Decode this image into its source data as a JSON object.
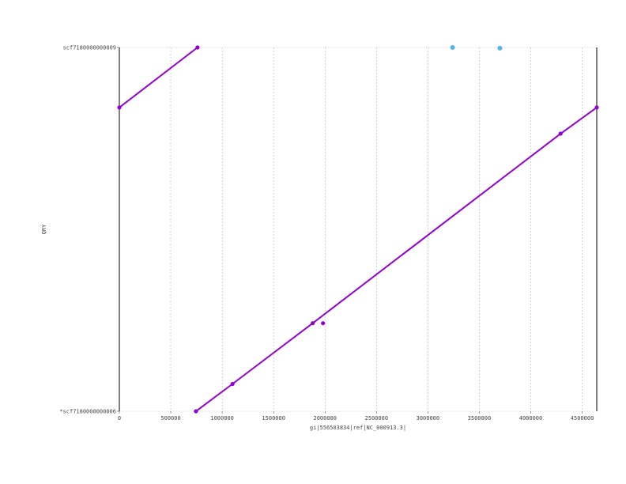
{
  "chart_data": {
    "type": "line",
    "title": "",
    "xlabel": "gi|556503834|ref|NC_000913.3|",
    "ylabel": "QRY",
    "xlim": [
      0,
      4641652
    ],
    "ylim": [
      0,
      1
    ],
    "x_ticks": [
      "0",
      "500000",
      "1000000",
      "1500000",
      "2000000",
      "2500000",
      "3000000",
      "3500000",
      "4000000",
      "4500000"
    ],
    "x_tick_values": [
      0,
      500000,
      1000000,
      1500000,
      2000000,
      2500000,
      3000000,
      3500000,
      4000000,
      4500000
    ],
    "y_ticks": [
      {
        "label": "scf7180000000009",
        "value": 1
      },
      {
        "label": "*scf7180000000006",
        "value": 0
      }
    ],
    "grid": true,
    "series": [
      {
        "color": "#9400d3",
        "segments": [
          {
            "points": [
              [
                0,
                0.835
              ],
              [
                760000,
                1.0
              ]
            ]
          },
          {
            "points": [
              [
                745000,
                0.0
              ],
              [
                1100000,
                0.075
              ],
              [
                1880000,
                0.242
              ],
              [
                4290000,
                0.763
              ],
              [
                4641652,
                0.835
              ]
            ]
          },
          {
            "points": [
              [
                1980000,
                0.242
              ]
            ]
          }
        ]
      },
      {
        "color": "#56b4e9",
        "segments": [
          {
            "points": [
              [
                3240000,
                1.0
              ]
            ]
          },
          {
            "points": [
              [
                3700000,
                0.998
              ]
            ]
          }
        ]
      }
    ]
  }
}
